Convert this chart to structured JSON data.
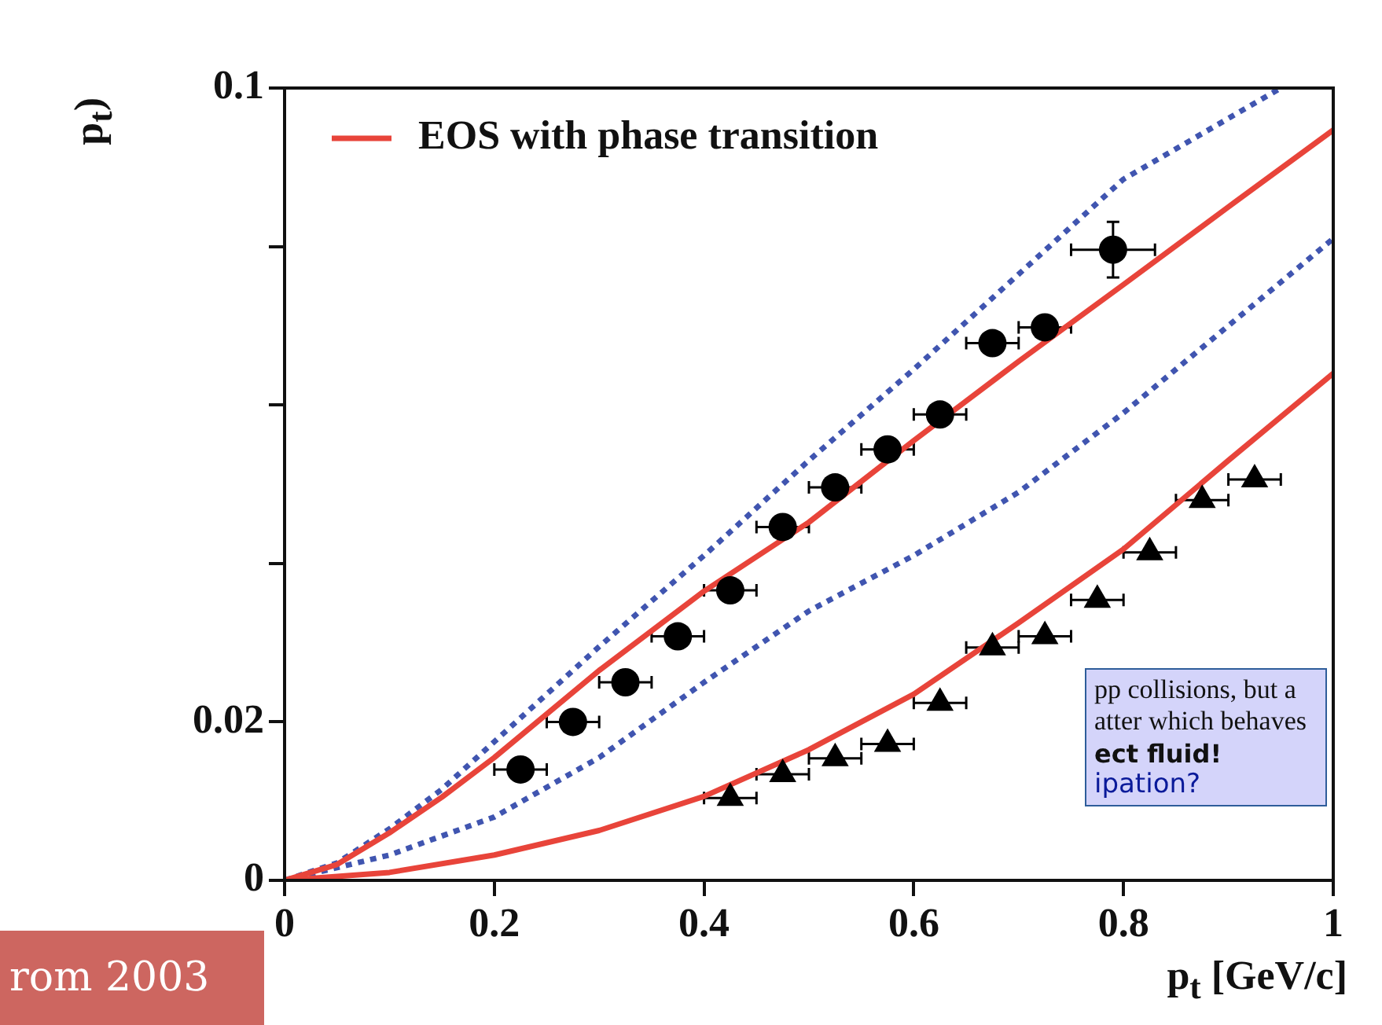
{
  "chart_data": {
    "type": "scatter",
    "xlabel": "p$_{t}$ [GeV/c]",
    "ylabel": "p$_{t}$)",
    "xlim": [
      0,
      1
    ],
    "ylim": [
      0,
      0.1
    ],
    "xticks": [
      0,
      0.2,
      0.4,
      0.6,
      0.8,
      1
    ],
    "yticks": [
      0,
      0.02,
      {
        "value": 0.04,
        "label": null
      },
      {
        "value": 0.06,
        "label": null
      },
      {
        "value": 0.08,
        "label": null
      },
      0.1
    ],
    "legend": "top left",
    "series": [
      {
        "name": "EOS with phase transition",
        "type": "line",
        "color": "#e8443a",
        "line_style": "solid",
        "marker": "none",
        "x": [
          0,
          0.05,
          0.1,
          0.15,
          0.2,
          0.3,
          0.4,
          0.5,
          0.6,
          0.7,
          0.8,
          0.9,
          1.0
        ],
        "values": [
          0,
          0.002,
          0.006,
          0.0105,
          0.0155,
          0.0265,
          0.0365,
          0.0452,
          0.0555,
          0.0655,
          0.0752,
          0.085,
          0.0947
        ]
      },
      {
        "type": "line",
        "color": "#e8443a",
        "line_style": "solid",
        "marker": "none",
        "x": [
          0,
          0.1,
          0.2,
          0.3,
          0.4,
          0.5,
          0.6,
          0.7,
          0.8,
          0.9,
          1.0
        ],
        "values": [
          0,
          0.001,
          0.0032,
          0.0063,
          0.0106,
          0.0165,
          0.0235,
          0.0325,
          0.0418,
          0.053,
          0.064
        ]
      },
      {
        "type": "line",
        "color": "#4055b0",
        "line_style": "dotted",
        "marker": "none",
        "x": [
          0,
          0.05,
          0.1,
          0.15,
          0.2,
          0.3,
          0.4,
          0.5,
          0.6,
          0.7,
          0.8,
          0.95
        ],
        "values": [
          0,
          0.0022,
          0.0065,
          0.0115,
          0.0175,
          0.0295,
          0.041,
          0.053,
          0.0645,
          0.0765,
          0.0885,
          0.1
        ]
      },
      {
        "type": "line",
        "color": "#4055b0",
        "line_style": "dotted",
        "marker": "none",
        "x": [
          0,
          0.1,
          0.2,
          0.3,
          0.4,
          0.5,
          0.6,
          0.7,
          0.8,
          0.9,
          1.0
        ],
        "values": [
          0,
          0.0032,
          0.008,
          0.0155,
          0.025,
          0.034,
          0.041,
          0.049,
          0.059,
          0.07,
          0.081
        ]
      },
      {
        "color": "#000000",
        "marker": "circle",
        "x": [
          0.225,
          0.275,
          0.325,
          0.375,
          0.425,
          0.475,
          0.525,
          0.575,
          0.625,
          0.675,
          0.725,
          0.79
        ],
        "values": [
          0.014,
          0.02,
          0.025,
          0.0308,
          0.0366,
          0.0446,
          0.0496,
          0.0544,
          0.0588,
          0.0678,
          0.0698,
          0.0796
        ],
        "xerrors": [
          0.025,
          0.025,
          0.025,
          0.025,
          0.025,
          0.025,
          0.025,
          0.025,
          0.025,
          0.025,
          0.025,
          0.04
        ],
        "errors": [
          null,
          null,
          null,
          null,
          null,
          null,
          null,
          null,
          null,
          null,
          null,
          0.0035
        ]
      },
      {
        "color": "#000000",
        "marker": "triangle",
        "x": [
          0.425,
          0.475,
          0.525,
          0.575,
          0.625,
          0.675,
          0.725,
          0.775,
          0.825,
          0.875,
          0.925
        ],
        "values": [
          0.0104,
          0.0134,
          0.0154,
          0.0172,
          0.0224,
          0.0294,
          0.0308,
          0.0354,
          0.0414,
          0.048,
          0.0506
        ],
        "xerrors": [
          0.025,
          0.025,
          0.025,
          0.025,
          0.025,
          0.025,
          0.025,
          0.025,
          0.025,
          0.025,
          0.025
        ]
      }
    ],
    "annotations": [
      "pp collisions, but a",
      "atter which behaves",
      "ect fluid!",
      "ipation?",
      "rom 2003"
    ]
  }
}
